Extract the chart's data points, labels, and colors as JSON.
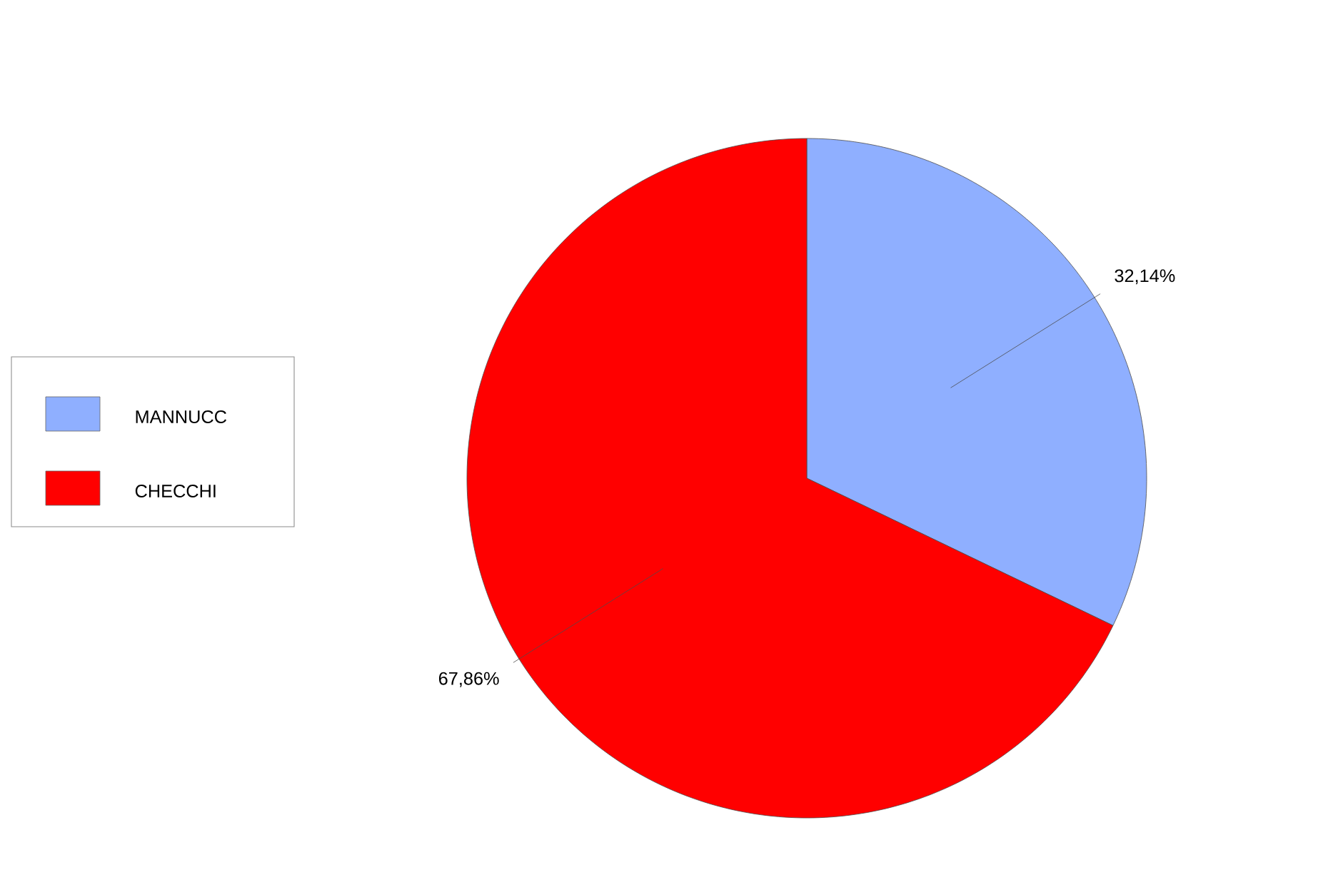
{
  "chart_data": {
    "type": "pie",
    "categories": [
      "MANNUCC",
      "CHECCHI"
    ],
    "values": [
      32.14,
      67.86
    ],
    "colors": [
      "#8fafff",
      "#ff0000"
    ],
    "value_labels": [
      "32,14%",
      "67,86%"
    ],
    "legend": "left"
  }
}
